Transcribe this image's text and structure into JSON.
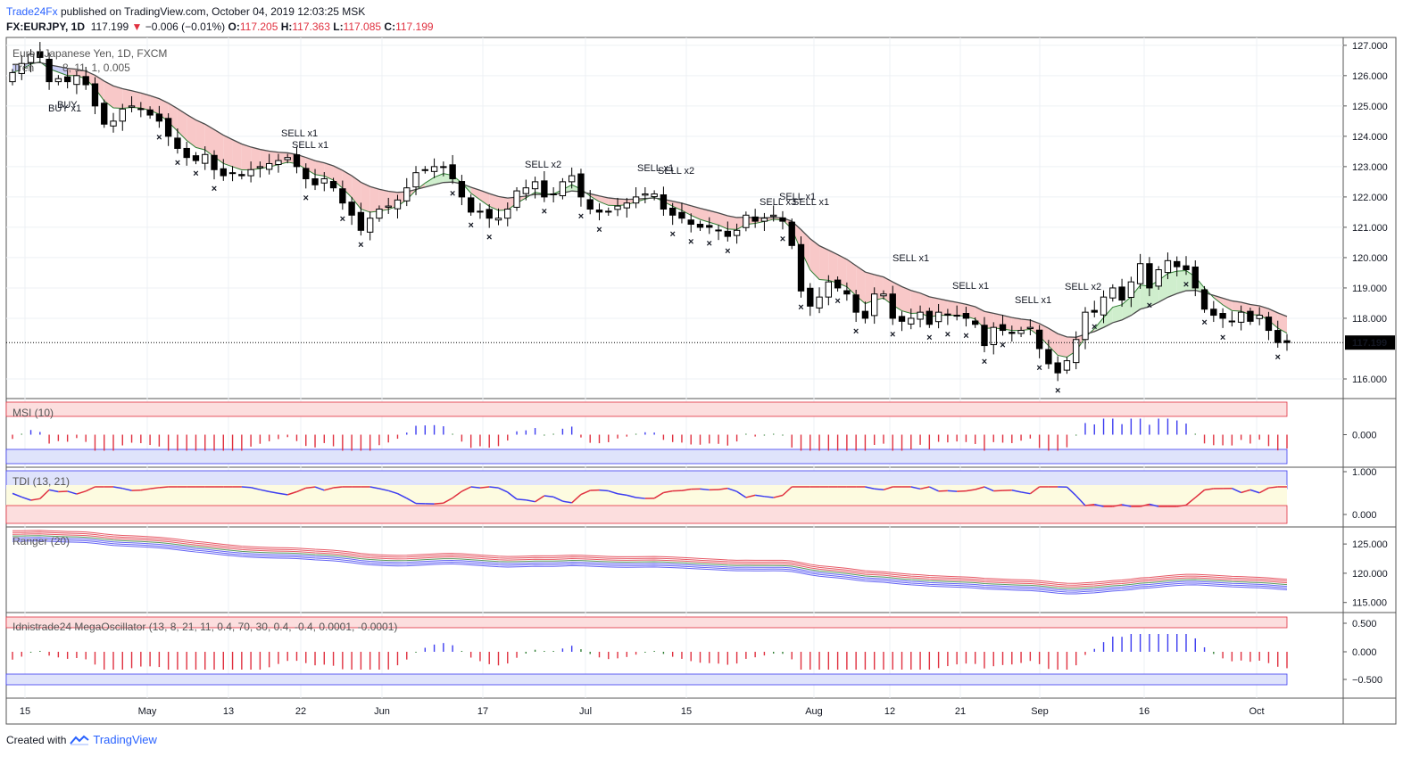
{
  "header": {
    "brand": "Trade24Fx",
    "published": "published on TradingView.com, October 04, 2019 12:03:25 MSK",
    "symbol": "FX:EURJPY, 1D",
    "last": "117.199",
    "change": "−0.006 (−0.01%)",
    "open_label": "O:",
    "open": "117.205",
    "high_label": "H:",
    "high": "117.363",
    "low_label": "L:",
    "low": "117.085",
    "close_label": "C:",
    "close": "117.199"
  },
  "footer": {
    "created": "Created with",
    "brand": "TradingView"
  },
  "colors": {
    "up": "#000000",
    "down": "#000000",
    "sell": "#e0303f",
    "buy": "#3c3cf0",
    "cloud_bear": "#f8c8c8",
    "cloud_bull": "#cfeecd",
    "cloud_buy": "#c9cdf5"
  },
  "chart_data": {
    "type": "candlestick",
    "title": "Euro / Japanese Yen, 1D, FXCM",
    "indicator_label": "Tren",
    "indicator_params": "8, 11, 1, 0.005",
    "y_ticks": [
      "127.000",
      "126.000",
      "125.000",
      "124.000",
      "123.000",
      "122.000",
      "121.000",
      "120.000",
      "119.000",
      "118.000",
      "117.199",
      "116.000"
    ],
    "ylim": [
      115.5,
      127.2
    ],
    "x_ticks": [
      "15",
      "May",
      "13",
      "22",
      "Jun",
      "17",
      "Jul",
      "15",
      "Aug",
      "12",
      "21",
      "Sep",
      "16",
      "Oct"
    ],
    "last_price": "117.199",
    "signal_labels": [
      {
        "text": "BUY x1"
      },
      {
        "text": "BUY"
      },
      {
        "text": "SELL x1"
      },
      {
        "text": "SELL x1"
      },
      {
        "text": "SELL x2"
      },
      {
        "text": "SELL x1"
      },
      {
        "text": "SELL x2"
      },
      {
        "text": "SELL x3"
      },
      {
        "text": "SELL x1"
      },
      {
        "text": "SELL x1"
      },
      {
        "text": "SELL x1"
      },
      {
        "text": "SELL x1"
      },
      {
        "text": "SELL x1"
      },
      {
        "text": "SELL x2"
      }
    ],
    "closes": [
      126.1,
      126.4,
      126.7,
      126.6,
      125.8,
      125.9,
      125.8,
      126.0,
      125.7,
      125.0,
      124.4,
      124.5,
      124.9,
      125.0,
      124.9,
      124.7,
      124.5,
      124.0,
      123.6,
      123.3,
      123.2,
      123.4,
      122.9,
      122.7,
      122.8,
      122.7,
      122.9,
      123.0,
      123.1,
      123.2,
      123.3,
      123.0,
      122.6,
      122.4,
      122.6,
      122.3,
      121.8,
      121.4,
      120.9,
      121.3,
      121.6,
      121.7,
      121.9,
      122.3,
      122.8,
      122.9,
      123.0,
      123.0,
      122.6,
      122.0,
      121.5,
      121.5,
      121.3,
      121.3,
      121.6,
      122.2,
      122.3,
      122.5,
      122.0,
      122.1,
      122.5,
      122.7,
      122.0,
      121.6,
      121.5,
      121.5,
      121.7,
      121.8,
      122.0,
      122.1,
      122.1,
      121.6,
      121.4,
      121.3,
      121.1,
      121.0,
      121.0,
      120.9,
      120.7,
      120.9,
      121.4,
      121.2,
      121.3,
      121.4,
      121.2,
      120.4,
      118.9,
      118.4,
      118.7,
      119.2,
      119.0,
      118.8,
      118.2,
      118.0,
      118.8,
      118.8,
      118.0,
      117.9,
      118.0,
      118.2,
      117.8,
      118.2,
      118.1,
      118.1,
      118.0,
      117.8,
      117.1,
      117.7,
      117.6,
      117.5,
      117.6,
      117.7,
      117.0,
      116.5,
      116.2,
      116.6,
      117.3,
      118.2,
      118.2,
      118.7,
      119.0,
      118.6,
      119.2,
      119.8,
      119.0,
      119.6,
      119.9,
      119.7,
      119.6,
      119.0,
      118.3,
      118.1,
      118.0,
      117.9,
      118.2,
      117.9,
      118.1,
      117.6,
      117.2,
      117.2
    ],
    "panes": [
      {
        "name": "MSI (10)",
        "y_ticks": [
          "0.000"
        ]
      },
      {
        "name": "TDI (13, 21)",
        "y_ticks": [
          "1.000",
          "0.000"
        ]
      },
      {
        "name": "Ranger (20)",
        "y_ticks": [
          "125.000",
          "120.000",
          "115.000"
        ]
      },
      {
        "name": "Idnistrade24 MegaOscillator (13, 8, 21, 11, 0.4, 70, 30, 0.4, -0.4, 0.0001, -0.0001)",
        "y_ticks": [
          "0.500",
          "0.000",
          "−0.500"
        ]
      }
    ]
  }
}
